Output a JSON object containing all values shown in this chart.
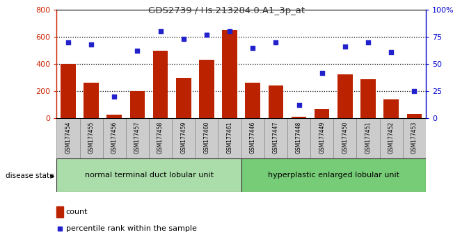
{
  "title": "GDS2739 / Hs.213284.0.A1_3p_at",
  "samples": [
    "GSM177454",
    "GSM177455",
    "GSM177456",
    "GSM177457",
    "GSM177458",
    "GSM177459",
    "GSM177460",
    "GSM177461",
    "GSM177446",
    "GSM177447",
    "GSM177448",
    "GSM177449",
    "GSM177450",
    "GSM177451",
    "GSM177452",
    "GSM177453"
  ],
  "counts": [
    400,
    260,
    25,
    200,
    500,
    300,
    430,
    650,
    260,
    240,
    10,
    65,
    325,
    285,
    140,
    30
  ],
  "percentiles": [
    70,
    68,
    20,
    62,
    80,
    73,
    77,
    80,
    65,
    70,
    12,
    42,
    66,
    70,
    61,
    25
  ],
  "group1_label": "normal terminal duct lobular unit",
  "group2_label": "hyperplastic enlarged lobular unit",
  "group1_count": 8,
  "group2_count": 8,
  "bar_color": "#bb2200",
  "dot_color": "#2222cc",
  "group1_bg": "#aaddaa",
  "group2_bg": "#77cc77",
  "xlabel_bg": "#cccccc",
  "ylim_left": [
    0,
    800
  ],
  "ylim_right": [
    0,
    100
  ],
  "yticks_left": [
    0,
    200,
    400,
    600,
    800
  ],
  "yticks_right": [
    0,
    25,
    50,
    75,
    100
  ],
  "legend_count_label": "count",
  "legend_pct_label": "percentile rank within the sample",
  "disease_state_label": "disease state",
  "left_axis_color": "#cc2200",
  "right_axis_color": "#0000cc",
  "grid_color": "#000000",
  "border_color": "#000000"
}
